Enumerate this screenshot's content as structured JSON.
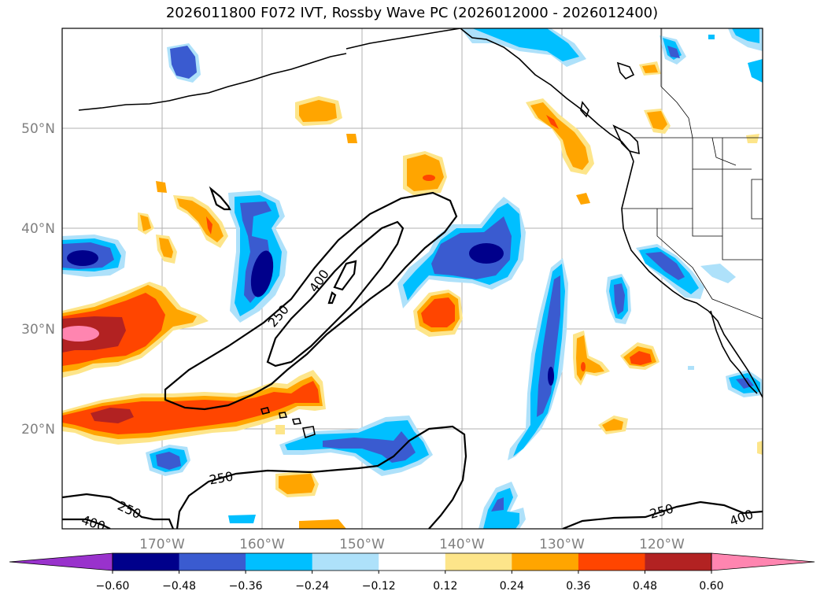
{
  "title": "2026011800 F072 IVT, Rossby Wave PC (2026012000 - 2026012400)",
  "lat_labels": [
    "50°N",
    "40°N",
    "30°N",
    "20°N"
  ],
  "lon_labels": [
    "170°W",
    "160°W",
    "150°W",
    "140°W",
    "130°W",
    "120°W"
  ],
  "colorbar": {
    "tick_labels": [
      "−0.60",
      "−0.48",
      "−0.36",
      "−0.24",
      "−0.12",
      "0.12",
      "0.24",
      "0.36",
      "0.48",
      "0.60"
    ],
    "colors": [
      "#9932cc",
      "#00008b",
      "#3a5bd0",
      "#00bfff",
      "#aee1fa",
      "#ffffff",
      "#fde58a",
      "#ffa500",
      "#ff4500",
      "#b22222",
      "#ff85b0"
    ]
  },
  "contour_labels": [
    "400",
    "250",
    "250",
    "250",
    "400",
    "250",
    "400"
  ],
  "map": {
    "region": "North Pacific and western North America",
    "lat_range": [
      10,
      60
    ],
    "lon_range": [
      -180,
      -111
    ]
  }
}
